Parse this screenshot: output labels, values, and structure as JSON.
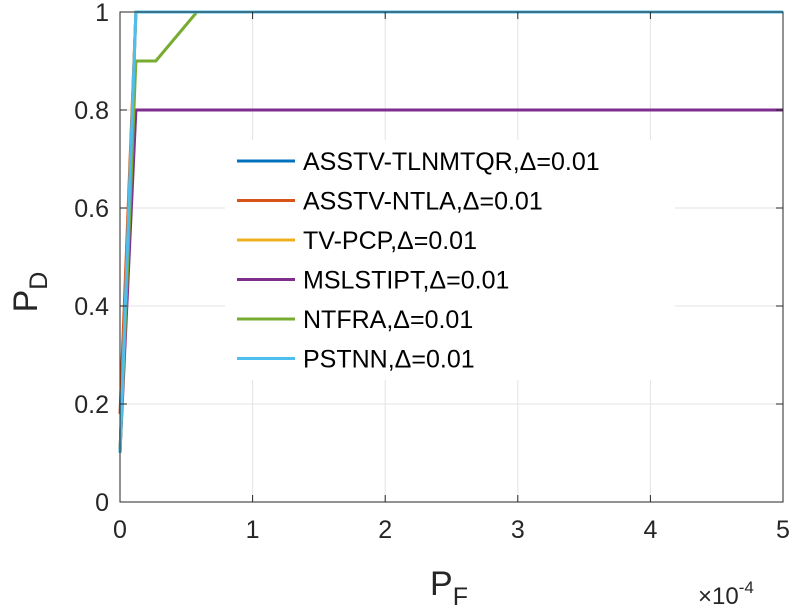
{
  "chart_data": {
    "type": "line",
    "xlabel_main": "P",
    "xlabel_sub": "F",
    "ylabel_main": "P",
    "ylabel_sub": "D",
    "x_exponent_prefix": "×10",
    "x_exponent_power": "-4",
    "xlim": [
      0,
      5
    ],
    "ylim": [
      0,
      1
    ],
    "x_ticks": [
      0,
      1,
      2,
      3,
      4,
      5
    ],
    "x_tick_labels": [
      "0",
      "1",
      "2",
      "3",
      "4",
      "5"
    ],
    "y_ticks": [
      0,
      0.2,
      0.4,
      0.6,
      0.8,
      1
    ],
    "y_tick_labels": [
      "0",
      "0.2",
      "0.4",
      "0.6",
      "0.8",
      "1"
    ],
    "grid": true,
    "legend_position": "center",
    "series": [
      {
        "name": "ASSTV-TLNMTQR,Δ=0.01",
        "color": "#0072BD",
        "x": [
          0,
          0.12,
          5
        ],
        "y": [
          0.1,
          1,
          1
        ]
      },
      {
        "name": "ASSTV-NTLA,Δ=0.01",
        "color": "#D95319",
        "x": [
          0,
          0.12,
          5
        ],
        "y": [
          0.18,
          1,
          1
        ]
      },
      {
        "name": "TV-PCP,Δ=0.01",
        "color": "#EDB120",
        "x": [
          0,
          0.12,
          5
        ],
        "y": [
          0.1,
          1,
          1
        ]
      },
      {
        "name": "MSLSTIPT,Δ=0.01",
        "color": "#7E2F8E",
        "x": [
          0,
          0.12,
          5
        ],
        "y": [
          0.1,
          0.8,
          0.8
        ]
      },
      {
        "name": "NTFRA,Δ=0.01",
        "color": "#77AC30",
        "x": [
          0,
          0.12,
          0.27,
          0.58,
          5
        ],
        "y": [
          0.1,
          0.9,
          0.9,
          1,
          1
        ]
      },
      {
        "name": "PSTNN,Δ=0.01",
        "color": "#4DBEEE",
        "x": [
          0,
          0.12,
          5
        ],
        "y": [
          0.1,
          1,
          1
        ]
      }
    ]
  }
}
